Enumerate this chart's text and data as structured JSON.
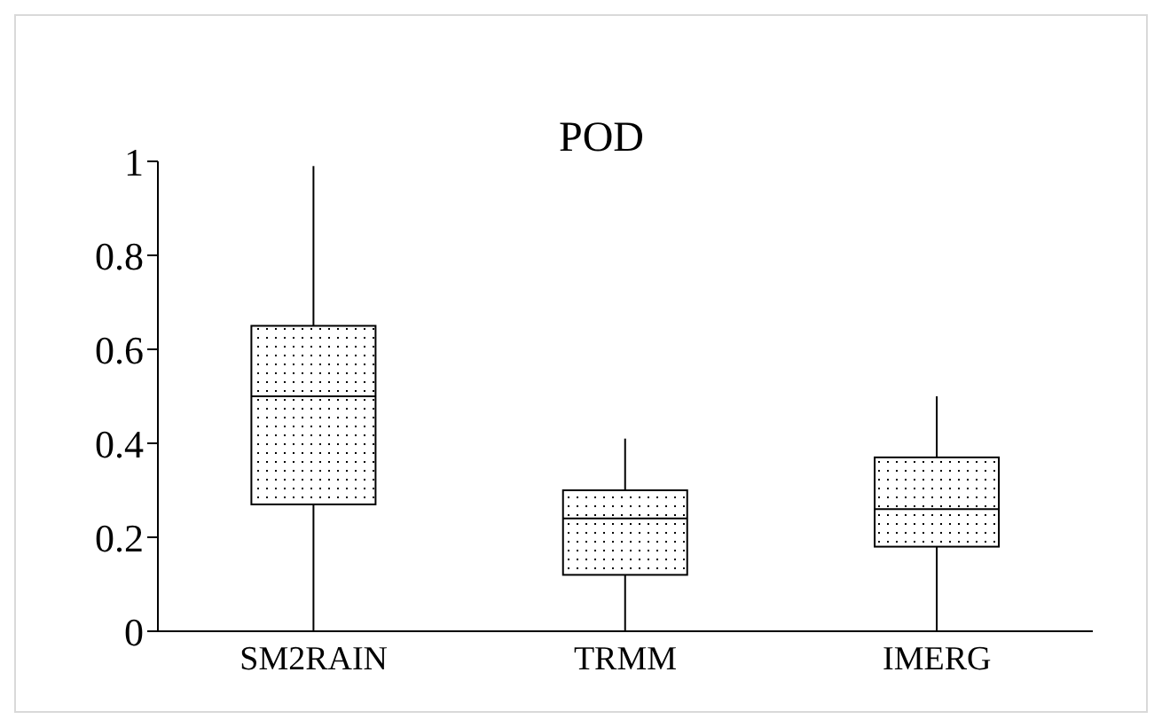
{
  "chart_data": {
    "type": "box",
    "title": "POD",
    "categories": [
      "SM2RAIN",
      "TRMM",
      "IMERG"
    ],
    "series": [
      {
        "color": "#000000",
        "boxes": [
          {
            "low": 0,
            "q1": 0.27,
            "median": 0.5,
            "q3": 0.65,
            "high": 0.99
          },
          {
            "low": 0,
            "q1": 0.12,
            "median": 0.24,
            "q3": 0.3,
            "high": 0.41
          },
          {
            "low": 0,
            "q1": 0.18,
            "median": 0.26,
            "q3": 0.37,
            "high": 0.5
          }
        ]
      }
    ],
    "ylim": [
      0,
      1
    ],
    "yticks": [
      0,
      0.2,
      0.4,
      0.6,
      0.8,
      1
    ],
    "legend": false
  }
}
